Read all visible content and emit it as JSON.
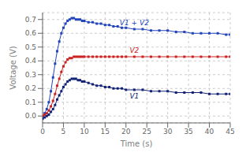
{
  "chart_data": {
    "type": "line",
    "xlabel": "Time (s)",
    "ylabel": "Voltage (V)",
    "x": [
      0,
      0.5,
      1,
      1.5,
      2,
      2.5,
      3,
      3.5,
      4,
      4.5,
      5,
      5.5,
      6,
      6.5,
      7,
      7.5,
      8,
      8.5,
      9,
      9.5,
      10,
      11,
      12,
      13,
      14,
      15,
      16,
      17,
      18,
      19,
      20,
      22,
      24,
      26,
      28,
      30,
      32,
      34,
      36,
      38,
      40,
      42,
      44,
      45
    ],
    "series": [
      {
        "name": "V1 + V2",
        "color": "#2244bb",
        "marker": "square",
        "values": [
          0.0,
          0.02,
          0.05,
          0.1,
          0.18,
          0.28,
          0.38,
          0.47,
          0.54,
          0.6,
          0.64,
          0.67,
          0.69,
          0.7,
          0.71,
          0.71,
          0.7,
          0.7,
          0.7,
          0.69,
          0.69,
          0.68,
          0.68,
          0.67,
          0.67,
          0.66,
          0.66,
          0.65,
          0.65,
          0.64,
          0.64,
          0.63,
          0.63,
          0.62,
          0.62,
          0.62,
          0.61,
          0.61,
          0.6,
          0.6,
          0.6,
          0.6,
          0.59,
          0.59
        ]
      },
      {
        "name": "V2",
        "color": "#cc2222",
        "marker": "square",
        "values": [
          0.0,
          0.01,
          0.02,
          0.04,
          0.07,
          0.11,
          0.16,
          0.22,
          0.27,
          0.32,
          0.36,
          0.39,
          0.41,
          0.42,
          0.42,
          0.43,
          0.43,
          0.43,
          0.43,
          0.43,
          0.43,
          0.43,
          0.43,
          0.43,
          0.43,
          0.43,
          0.43,
          0.43,
          0.43,
          0.43,
          0.43,
          0.43,
          0.43,
          0.43,
          0.43,
          0.43,
          0.43,
          0.43,
          0.43,
          0.43,
          0.43,
          0.43,
          0.43,
          0.43
        ]
      },
      {
        "name": "V1",
        "color": "#112277",
        "marker": "square",
        "values": [
          -0.02,
          -0.01,
          0.0,
          0.01,
          0.03,
          0.05,
          0.08,
          0.12,
          0.15,
          0.18,
          0.21,
          0.23,
          0.25,
          0.26,
          0.27,
          0.27,
          0.27,
          0.26,
          0.26,
          0.25,
          0.25,
          0.24,
          0.23,
          0.22,
          0.22,
          0.21,
          0.21,
          0.2,
          0.2,
          0.2,
          0.19,
          0.19,
          0.19,
          0.18,
          0.18,
          0.18,
          0.17,
          0.17,
          0.17,
          0.17,
          0.16,
          0.16,
          0.16,
          0.16
        ]
      }
    ],
    "xlim": [
      0,
      45
    ],
    "ylim": [
      -0.05,
      0.75
    ],
    "xticks": [
      0,
      5,
      10,
      15,
      20,
      25,
      30,
      35,
      40,
      45
    ],
    "yticks": [
      {
        "value": 0,
        "label": "0.0"
      },
      0.1,
      0.2,
      0.3,
      0.4,
      0.5,
      0.6,
      0.7
    ],
    "grid": true
  }
}
